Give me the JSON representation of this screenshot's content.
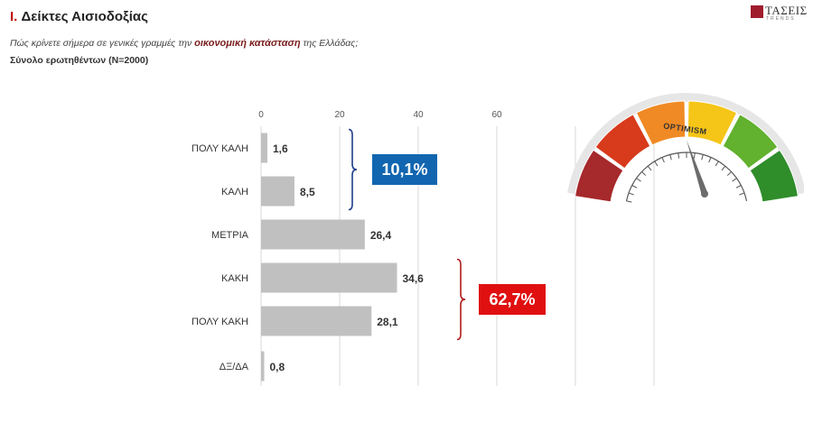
{
  "header": {
    "section_number": "I.",
    "section_title": "Δείκτες Αισιοδοξίας",
    "question_pre": "Πώς κρίνετε σήμερα σε γενικές γραμμές την",
    "question_emph": "οικονομική κατάσταση",
    "question_post": "της Ελλάδας;",
    "sample": "Σύνολο ερωτηθέντων (N=2000)"
  },
  "logo": {
    "brand": "ΤΑΣΕΙΣ",
    "sub": "TRENDS"
  },
  "chart_data": {
    "type": "bar",
    "orientation": "horizontal",
    "categories": [
      "ΠΟΛΥ ΚΑΛΗ",
      "ΚΑΛΗ",
      "ΜΕΤΡΙΑ",
      "ΚΑΚΗ",
      "ΠΟΛΥ ΚΑΚΗ",
      "ΔΞ/ΔΑ"
    ],
    "values": [
      1.6,
      8.5,
      26.4,
      34.6,
      28.1,
      0.8
    ],
    "value_labels": [
      "1,6",
      "8,5",
      "26,4",
      "34,6",
      "28,1",
      "0,8"
    ],
    "xlim": [
      0,
      100
    ],
    "xticks": [
      0,
      20,
      40,
      60
    ],
    "grid": true,
    "bar_color": "#c0c0c0",
    "groups": [
      {
        "label": "10,1%",
        "color": "#1266b0",
        "categories": [
          "ΠΟΛΥ ΚΑΛΗ",
          "ΚΑΛΗ"
        ]
      },
      {
        "label": "62,7%",
        "color": "#e01010",
        "categories": [
          "ΚΑΚΗ",
          "ΠΟΛΥ ΚΑΚΗ"
        ]
      }
    ]
  },
  "gauge": {
    "label": "OPTIMISM",
    "segment_colors": [
      "#a6292b",
      "#d83a1c",
      "#f08a24",
      "#f5c518",
      "#62b12f",
      "#2f8d2a"
    ],
    "needle_color": "#6b6b6b"
  }
}
